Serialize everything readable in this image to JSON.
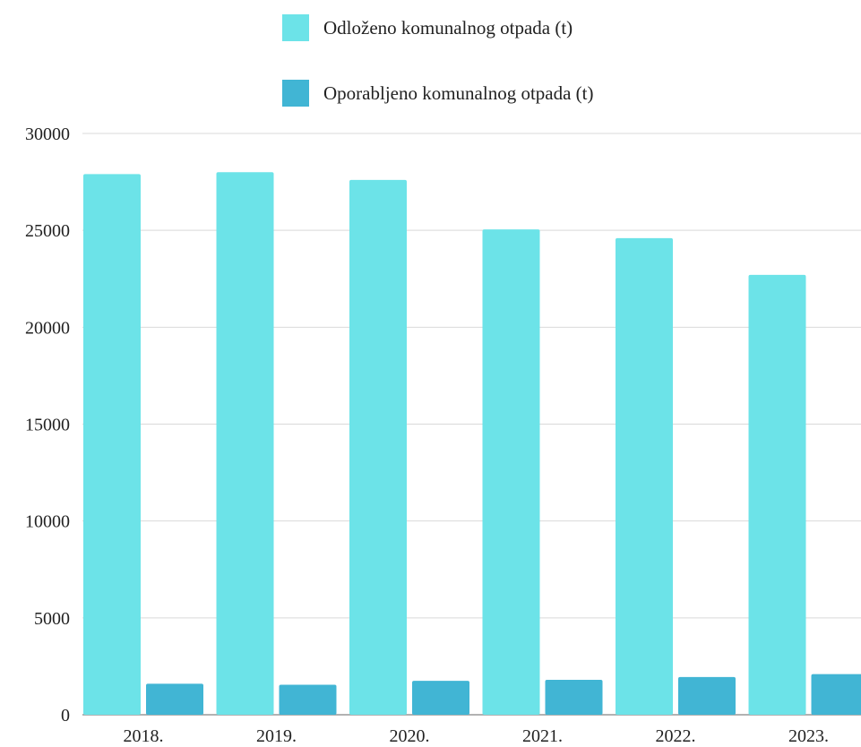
{
  "legend": {
    "series_1": "Odloženo komunalnog otpada (t)",
    "series_2": "Oporabljeno komunalnog otpada (t)"
  },
  "colors": {
    "series_1": "#6ce3e8",
    "series_2": "#41b5d4",
    "grid": "#d9d9d9",
    "axis": "#999999"
  },
  "chart_data": {
    "type": "bar",
    "categories": [
      "2018.",
      "2019.",
      "2020.",
      "2021.",
      "2022.",
      "2023."
    ],
    "series": [
      {
        "name": "Odloženo komunalnog otpada (t)",
        "values": [
          27900,
          28000,
          27600,
          25050,
          24600,
          22700
        ]
      },
      {
        "name": "Oporabljeno komunalnog otpada (t)",
        "values": [
          1600,
          1550,
          1750,
          1800,
          1950,
          2100
        ]
      }
    ],
    "y_ticks": [
      "0",
      "5000",
      "10000",
      "15000",
      "20000",
      "25000",
      "30000"
    ],
    "ylim": [
      0,
      30000
    ],
    "grid": true,
    "legend_position": "top-center"
  }
}
